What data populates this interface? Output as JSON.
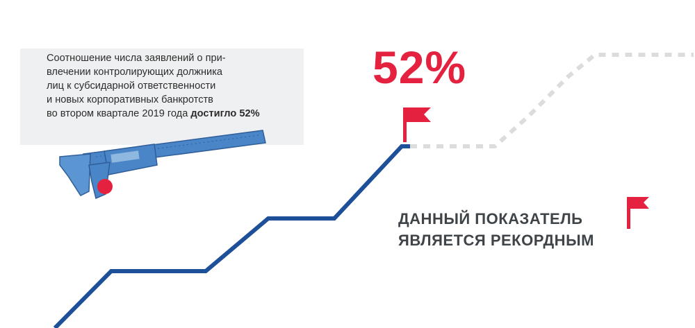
{
  "note": {
    "text": "Соотношение числа заявлений о при-влечении контролирующих должника лиц к субсидарной ответственности и новых корпоративных банкротств во втором квартале 2019 года",
    "lines": [
      "Соотношение числа заявлений о при-",
      "влечении контролирующих должника",
      "лиц к субсидарной ответственности",
      "и новых корпоративных банкротств",
      "во втором квартале 2019 года"
    ],
    "highlight": "достигло 52%"
  },
  "big_value": "52%",
  "record": {
    "line1": "ДАННЫЙ ПОКАЗАТЕЛЬ",
    "line2": "ЯВЛЯЕТСЯ РЕКОРДНЫМ"
  },
  "colors": {
    "accent_red": "#e4223f",
    "line_blue": "#1e4f99",
    "dotted_gray": "#dcdcdc",
    "box_gray": "#eff0f2",
    "text_dark": "#3f4448"
  },
  "icons": [
    "caliper-icon",
    "flag-icon",
    "flag-icon"
  ]
}
